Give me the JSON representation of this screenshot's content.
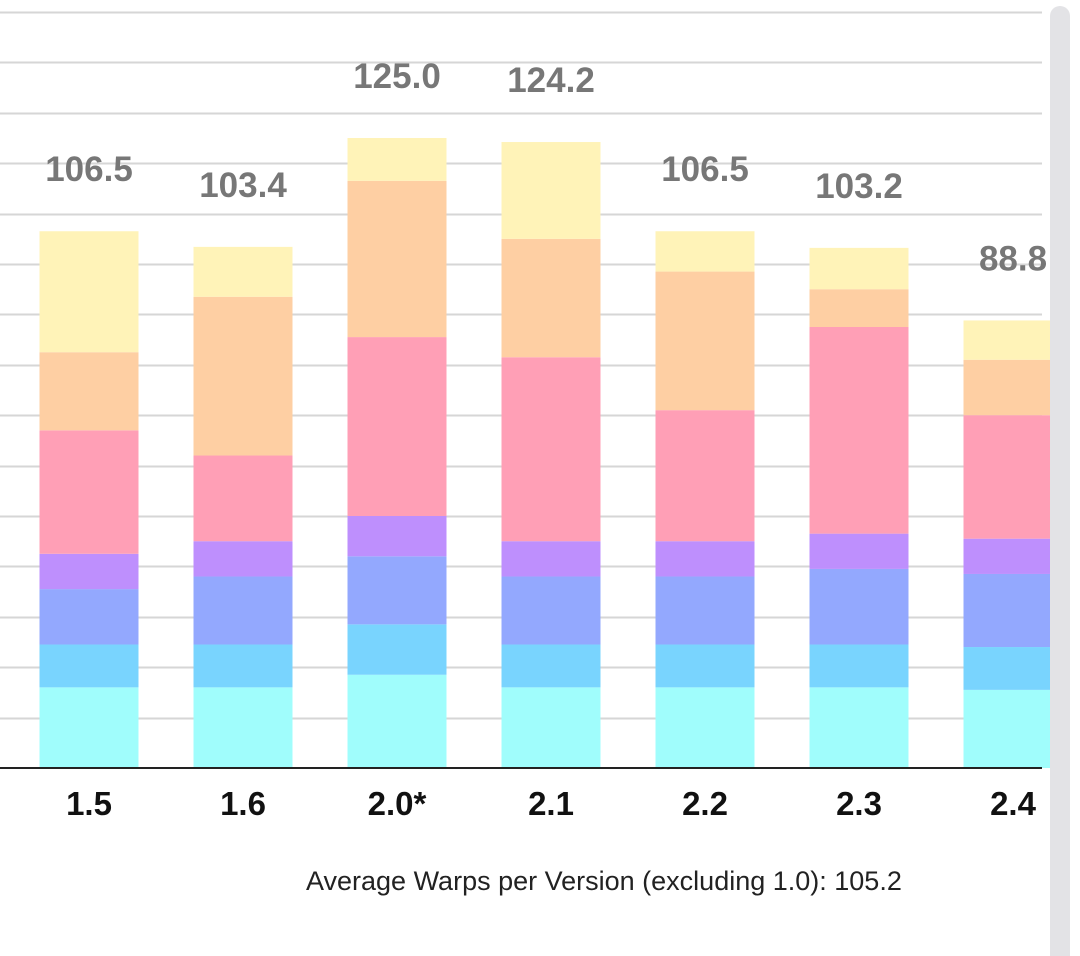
{
  "chart_data": {
    "type": "bar",
    "stacked": true,
    "categories": [
      "1.5",
      "1.6",
      "2.0*",
      "2.1",
      "2.2",
      "2.3",
      "2.4"
    ],
    "totals": [
      106.5,
      103.4,
      125.0,
      124.2,
      106.5,
      103.2,
      88.8
    ],
    "total_labels": [
      "106.5",
      "103.4",
      "125.0",
      "124.2",
      "106.5",
      "103.2",
      "88.8"
    ],
    "series": [
      {
        "color": "#a0fdfc",
        "values": [
          16,
          16,
          18.5,
          16,
          16,
          16,
          15.5
        ]
      },
      {
        "color": "#79d4fe",
        "values": [
          8.5,
          8.5,
          10,
          8.5,
          8.5,
          8.5,
          8.5
        ]
      },
      {
        "color": "#93a8fe",
        "values": [
          11,
          13.5,
          13.5,
          13.5,
          13.5,
          15,
          14.5
        ]
      },
      {
        "color": "#be8ffd",
        "values": [
          7,
          7,
          8,
          7,
          7,
          7,
          7
        ]
      },
      {
        "color": "#ff9fb6",
        "values": [
          24.5,
          17,
          35.5,
          36.5,
          26,
          41,
          24.5
        ]
      },
      {
        "color": "#fecfa3",
        "values": [
          15.5,
          31.5,
          31,
          23.5,
          27.5,
          7.5,
          11
        ]
      },
      {
        "color": "#fff3b8",
        "values": [
          24,
          9.9,
          8.5,
          19.2,
          8,
          8.2,
          7.8
        ]
      }
    ],
    "ylim": [
      0,
      150
    ],
    "grid": true,
    "gridlines": [
      0,
      10,
      20,
      30,
      40,
      50,
      60,
      70,
      80,
      90,
      100,
      110,
      120,
      130,
      140,
      150
    ],
    "note": "Average Warps per Version (excluding 1.0): 105.2"
  },
  "colors": {
    "grid": "#d6d6d6",
    "axis": "#222222",
    "total_label": "#777777",
    "tick_label": "#111111",
    "scrollbar": "#e3e3e6"
  }
}
